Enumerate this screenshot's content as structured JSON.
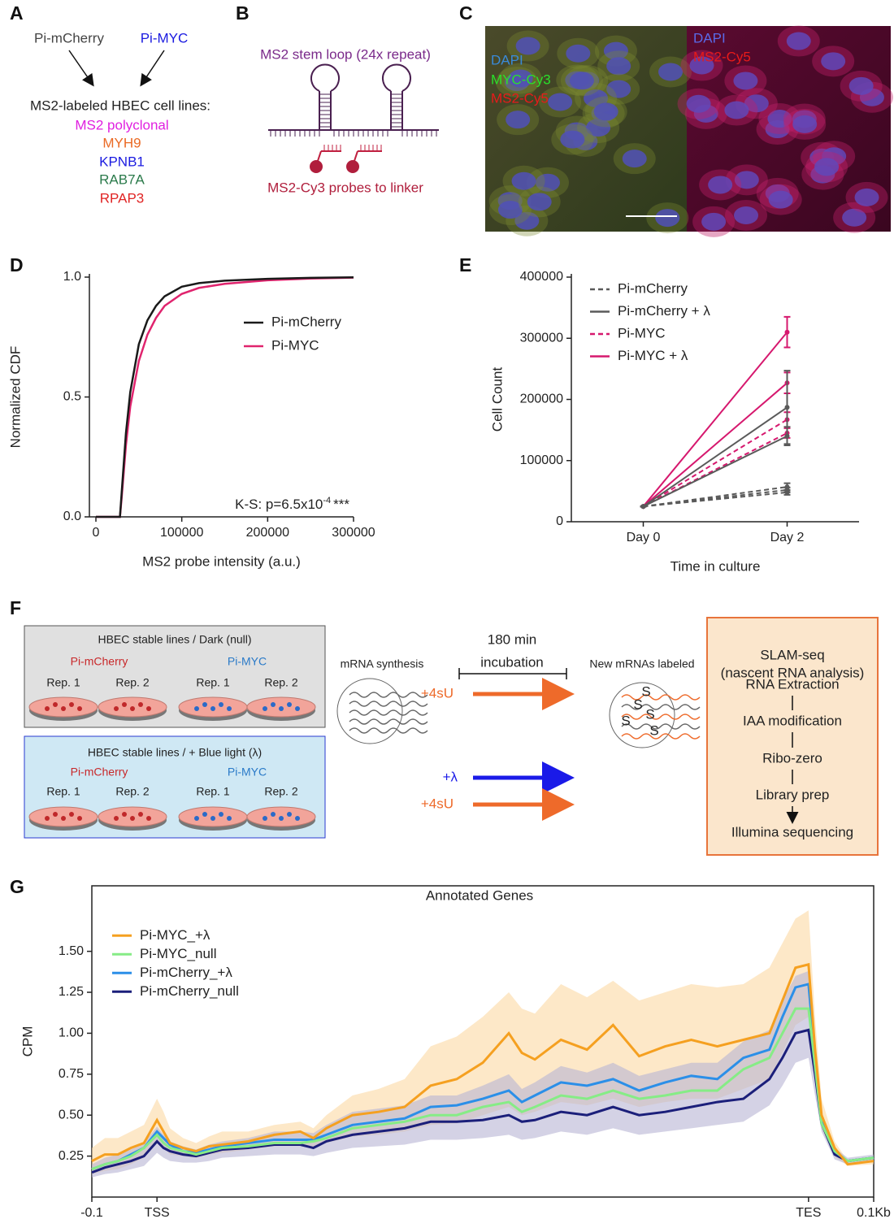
{
  "panel_labels": [
    "A",
    "B",
    "C",
    "D",
    "E",
    "F",
    "G"
  ],
  "panel_a": {
    "sources": [
      "Pi-mCherry",
      "Pi-MYC"
    ],
    "heading": "MS2-labeled HBEC cell lines:",
    "cell_lines": [
      "MS2 polyclonal",
      "MYH9",
      "KPNB1",
      "RAB7A",
      "RPAP3"
    ]
  },
  "panel_b": {
    "top_label": "MS2 stem loop (24x repeat)",
    "bottom_label": "MS2-Cy3 probes to linker"
  },
  "panel_c": {
    "left_channels": [
      "DAPI",
      "MYC-Cy3",
      "MS2-Cy5"
    ],
    "right_channels": [
      "DAPI",
      "MS2-Cy5"
    ]
  },
  "panel_f": {
    "dark_box": {
      "title": "HBEC stable lines  / Dark (null)",
      "lines": [
        "Pi-mCherry",
        "Pi-MYC"
      ],
      "reps": [
        "Rep. 1",
        "Rep. 2",
        "Rep. 1",
        "Rep. 2"
      ]
    },
    "light_box": {
      "title": "HBEC stable lines  / + Blue light (λ)",
      "lines": [
        "Pi-mCherry",
        "Pi-MYC"
      ],
      "reps": [
        "Rep. 1",
        "Rep. 2",
        "Rep. 1",
        "Rep. 2"
      ]
    },
    "mrna_synthesis": "mRNA synthesis",
    "incubation": [
      "180 min",
      "incubation"
    ],
    "treatment_dark": "+4sU",
    "treatment_light": [
      "+λ",
      "+4sU"
    ],
    "new_mrnas": "New mRNAs labeled",
    "label_marker": "S",
    "slam_box": {
      "title": [
        "SLAM-seq",
        "(nascent RNA analysis)"
      ],
      "steps": [
        "RNA Extraction",
        "IAA modification",
        "Ribo-zero",
        "Library prep",
        "Illumina sequencing"
      ]
    }
  },
  "chart_data": [
    {
      "type": "line",
      "x": [
        0,
        25000,
        28000,
        30000,
        35000,
        40000,
        50000,
        60000,
        70000,
        80000,
        100000,
        120000,
        150000,
        200000,
        250000,
        300000
      ],
      "series": [
        {
          "name": "Pi-mCherry",
          "color": "#1a1a1a",
          "values": [
            0,
            0,
            0,
            0.1,
            0.35,
            0.52,
            0.72,
            0.82,
            0.88,
            0.92,
            0.96,
            0.975,
            0.985,
            0.993,
            0.997,
            0.999
          ]
        },
        {
          "name": "Pi-MYC",
          "color": "#e0246e",
          "values": [
            0,
            0,
            0,
            0.08,
            0.3,
            0.46,
            0.65,
            0.76,
            0.83,
            0.88,
            0.93,
            0.955,
            0.972,
            0.987,
            0.994,
            0.998
          ]
        }
      ],
      "xlim": [
        0,
        300000
      ],
      "ylim": [
        0,
        1
      ],
      "xticks": [
        0,
        100000,
        200000,
        300000
      ],
      "yticks": [
        {
          "value": 0,
          "label": "0.0"
        },
        0.5,
        {
          "value": 1,
          "label": "1.0"
        }
      ],
      "xlabel": "MS2 probe intensity (a.u.)",
      "ylabel": "Normalized CDF",
      "annotation": {
        "text": "K-S: p=6.5x10",
        "exponent": "-4",
        "stars": "***"
      },
      "legend": "center right"
    },
    {
      "type": "line",
      "categories": [
        "Day 0",
        "Day 2"
      ],
      "series": [
        {
          "name": "Pi-mCherry",
          "color": "#5a5a5a",
          "dashed": true,
          "replicates": [
            {
              "values": [
                25000,
                48000
              ],
              "errors": [
                0,
                4000
              ]
            },
            {
              "values": [
                25000,
                52000
              ],
              "errors": [
                0,
                4000
              ]
            },
            {
              "values": [
                25000,
                57000
              ],
              "errors": [
                0,
                6000
              ]
            }
          ]
        },
        {
          "name": "Pi-mCherry + λ",
          "color": "#5a5a5a",
          "dashed": false,
          "replicates": [
            {
              "values": [
                25000,
                187000
              ],
              "errors": [
                0,
                60000
              ]
            },
            {
              "values": [
                25000,
                140000
              ],
              "errors": [
                0,
                15000
              ]
            }
          ]
        },
        {
          "name": "Pi-MYC",
          "color": "#d6186e",
          "dashed": true,
          "replicates": [
            {
              "values": [
                25000,
                167000
              ],
              "errors": [
                0,
                12000
              ]
            },
            {
              "values": [
                25000,
                145000
              ],
              "errors": [
                0,
                8000
              ]
            }
          ]
        },
        {
          "name": "Pi-MYC + λ",
          "color": "#d6186e",
          "dashed": false,
          "replicates": [
            {
              "values": [
                25000,
                310000
              ],
              "errors": [
                0,
                25000
              ]
            },
            {
              "values": [
                25000,
                227000
              ],
              "errors": [
                0,
                17000
              ]
            }
          ]
        }
      ],
      "ylim": [
        0,
        400000
      ],
      "yticks": [
        0,
        100000,
        200000,
        300000,
        400000
      ],
      "xlabel": "Time in culture",
      "ylabel": "Cell Count",
      "legend": "upper left"
    },
    {
      "type": "line",
      "title": "Annotated Genes",
      "x": [
        0,
        2,
        4,
        6,
        8,
        10,
        11,
        12,
        14,
        16,
        18,
        20,
        24,
        28,
        32,
        34,
        36,
        40,
        44,
        48,
        52,
        56,
        60,
        64,
        66,
        68,
        72,
        76,
        80,
        84,
        88,
        92,
        96,
        100,
        104,
        106,
        108,
        110,
        111,
        112,
        114,
        116,
        120
      ],
      "series": [
        {
          "name": "Pi-MYC_+λ",
          "color": "#f5a020",
          "band_color": "#fbd9a4",
          "values": [
            0.22,
            0.26,
            0.26,
            0.3,
            0.33,
            0.47,
            0.4,
            0.33,
            0.3,
            0.28,
            0.31,
            0.32,
            0.34,
            0.38,
            0.4,
            0.36,
            0.42,
            0.5,
            0.52,
            0.55,
            0.68,
            0.72,
            0.82,
            1.0,
            0.88,
            0.84,
            0.96,
            0.9,
            1.05,
            0.86,
            0.92,
            0.96,
            0.92,
            0.96,
            1.0,
            1.2,
            1.4,
            1.42,
            0.9,
            0.5,
            0.3,
            0.2,
            0.22
          ],
          "band_lower": [
            0.14,
            0.16,
            0.17,
            0.2,
            0.24,
            0.34,
            0.3,
            0.26,
            0.25,
            0.24,
            0.26,
            0.27,
            0.29,
            0.31,
            0.32,
            0.3,
            0.33,
            0.37,
            0.38,
            0.4,
            0.44,
            0.45,
            0.5,
            0.55,
            0.5,
            0.52,
            0.58,
            0.56,
            0.6,
            0.55,
            0.58,
            0.6,
            0.6,
            0.66,
            0.72,
            0.88,
            1.05,
            1.1,
            0.72,
            0.42,
            0.25,
            0.19,
            0.2
          ],
          "band_upper": [
            0.3,
            0.36,
            0.36,
            0.4,
            0.44,
            0.6,
            0.52,
            0.42,
            0.36,
            0.33,
            0.37,
            0.4,
            0.4,
            0.44,
            0.46,
            0.42,
            0.5,
            0.62,
            0.66,
            0.72,
            0.92,
            0.98,
            1.1,
            1.25,
            1.15,
            1.12,
            1.3,
            1.22,
            1.32,
            1.2,
            1.25,
            1.3,
            1.28,
            1.3,
            1.4,
            1.55,
            1.7,
            1.75,
            1.1,
            0.6,
            0.34,
            0.22,
            0.24
          ]
        },
        {
          "name": "Pi-MYC_null",
          "color": "#86ec86",
          "values": [
            0.17,
            0.2,
            0.22,
            0.25,
            0.3,
            0.38,
            0.33,
            0.3,
            0.28,
            0.26,
            0.28,
            0.3,
            0.31,
            0.33,
            0.33,
            0.34,
            0.36,
            0.42,
            0.44,
            0.46,
            0.5,
            0.5,
            0.55,
            0.58,
            0.52,
            0.55,
            0.62,
            0.6,
            0.65,
            0.6,
            0.62,
            0.65,
            0.65,
            0.78,
            0.85,
            1.0,
            1.15,
            1.15,
            0.8,
            0.45,
            0.28,
            0.22,
            0.24
          ]
        },
        {
          "name": "Pi-mCherry_+λ",
          "color": "#2b8fe8",
          "values": [
            0.17,
            0.2,
            0.22,
            0.26,
            0.3,
            0.4,
            0.36,
            0.32,
            0.28,
            0.27,
            0.29,
            0.31,
            0.33,
            0.35,
            0.35,
            0.35,
            0.38,
            0.44,
            0.46,
            0.48,
            0.55,
            0.56,
            0.6,
            0.65,
            0.58,
            0.62,
            0.7,
            0.68,
            0.72,
            0.65,
            0.7,
            0.74,
            0.72,
            0.85,
            0.9,
            1.1,
            1.28,
            1.3,
            0.85,
            0.48,
            0.28,
            0.22,
            0.24
          ]
        },
        {
          "name": "Pi-mCherry_null",
          "color": "#1b1f7a",
          "band_color": "#b7b4d4",
          "values": [
            0.15,
            0.18,
            0.2,
            0.22,
            0.25,
            0.34,
            0.3,
            0.28,
            0.26,
            0.25,
            0.27,
            0.29,
            0.3,
            0.32,
            0.32,
            0.3,
            0.34,
            0.38,
            0.4,
            0.42,
            0.46,
            0.46,
            0.47,
            0.5,
            0.46,
            0.47,
            0.52,
            0.5,
            0.55,
            0.5,
            0.52,
            0.55,
            0.58,
            0.6,
            0.72,
            0.85,
            1.0,
            1.02,
            0.75,
            0.45,
            0.26,
            0.22,
            0.24
          ],
          "band_lower": [
            0.12,
            0.14,
            0.15,
            0.17,
            0.19,
            0.27,
            0.24,
            0.22,
            0.21,
            0.21,
            0.22,
            0.24,
            0.25,
            0.26,
            0.26,
            0.25,
            0.27,
            0.3,
            0.31,
            0.32,
            0.35,
            0.35,
            0.36,
            0.38,
            0.35,
            0.36,
            0.4,
            0.38,
            0.42,
            0.38,
            0.4,
            0.42,
            0.44,
            0.46,
            0.56,
            0.68,
            0.82,
            0.85,
            0.62,
            0.4,
            0.23,
            0.2,
            0.22
          ],
          "band_upper": [
            0.2,
            0.24,
            0.26,
            0.29,
            0.33,
            0.43,
            0.38,
            0.34,
            0.31,
            0.29,
            0.32,
            0.34,
            0.36,
            0.4,
            0.4,
            0.39,
            0.44,
            0.52,
            0.54,
            0.56,
            0.62,
            0.62,
            0.68,
            0.75,
            0.66,
            0.7,
            0.8,
            0.76,
            0.82,
            0.74,
            0.78,
            0.82,
            0.82,
            0.95,
            1.02,
            1.2,
            1.35,
            1.38,
            0.92,
            0.5,
            0.3,
            0.24,
            0.26
          ]
        }
      ],
      "xlim": [
        0,
        120
      ],
      "xticks": [
        {
          "value": 0,
          "label": "-0.1"
        },
        {
          "value": 10,
          "label": "TSS"
        },
        {
          "value": 110,
          "label": "TES"
        },
        {
          "value": 120,
          "label": "0.1Kb"
        }
      ],
      "ylim": [
        0,
        1.9
      ],
      "yticks": [
        0.25,
        {
          "value": 0.5,
          "label": "0.50"
        },
        0.75,
        {
          "value": 1,
          "label": "1.00"
        },
        1.25,
        {
          "value": 1.5,
          "label": "1.50"
        }
      ],
      "ylabel": "CPM",
      "legend": "upper left",
      "frame": true
    }
  ]
}
